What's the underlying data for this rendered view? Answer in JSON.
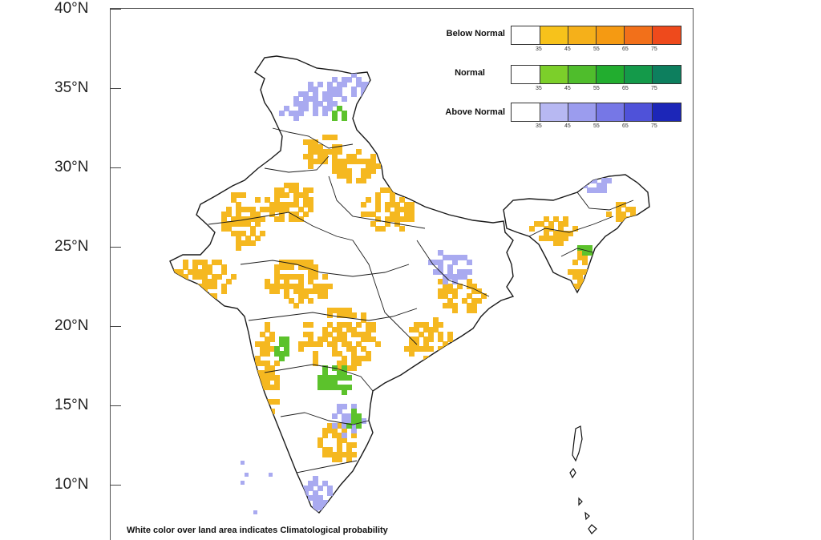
{
  "axis": {
    "lat_labels": [
      "40°N",
      "35°N",
      "30°N",
      "25°N",
      "20°N",
      "15°N",
      "10°N"
    ]
  },
  "legend": {
    "categories": [
      {
        "title": "Below Normal",
        "colors": [
          "#ffffff",
          "#f7c21b",
          "#f5b01a",
          "#f59a12",
          "#f2701a",
          "#ee4a1c"
        ],
        "ticks": [
          "35",
          "45",
          "55",
          "65",
          "75"
        ]
      },
      {
        "title": "Normal",
        "colors": [
          "#ffffff",
          "#7ccf2a",
          "#4fbd2c",
          "#22ad2f",
          "#149a4a",
          "#0d7f5e"
        ],
        "ticks": [
          "35",
          "45",
          "55",
          "65",
          "75"
        ]
      },
      {
        "title": "Above Normal",
        "colors": [
          "#ffffff",
          "#b7b8f2",
          "#9b9cee",
          "#7677e6",
          "#4f52d9",
          "#1c26b8"
        ],
        "ticks": [
          "35",
          "45",
          "55",
          "65",
          "75"
        ]
      }
    ]
  },
  "footnote": "White color over land area indicates Climatological probability",
  "colors": {
    "below_normal": "#f5b820",
    "normal": "#5cc22c",
    "above_normal": "#a9aaf0",
    "border": "#1a1a1a"
  }
}
